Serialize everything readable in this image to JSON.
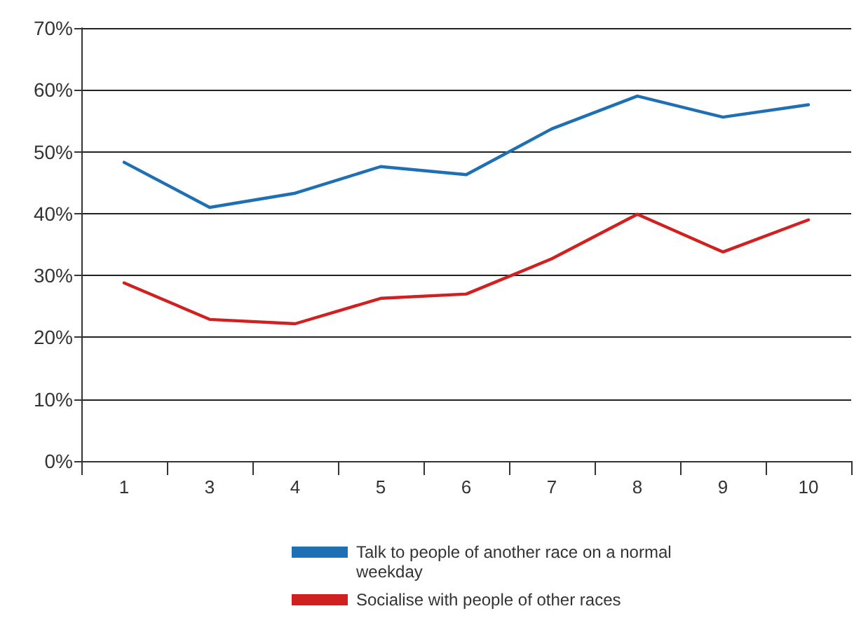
{
  "chart_data": {
    "type": "line",
    "categories": [
      "1",
      "3",
      "4",
      "5",
      "6",
      "7",
      "8",
      "9",
      "10"
    ],
    "series": [
      {
        "name": "Talk to people of another race on a normal weekday",
        "color": "#1f6fb5",
        "values": [
          48.3,
          41.0,
          43.3,
          47.6,
          46.3,
          53.7,
          59.0,
          55.6,
          57.6
        ]
      },
      {
        "name": "Socialise with people of other races",
        "color": "#d0201f",
        "values": [
          28.8,
          22.9,
          22.2,
          26.3,
          27.0,
          32.7,
          39.9,
          33.8,
          39.0
        ]
      }
    ],
    "ylim": [
      0,
      70
    ],
    "yticks": [
      {
        "value": 0,
        "label": "0%"
      },
      {
        "value": 10,
        "label": "10%"
      },
      {
        "value": 20,
        "label": "20%"
      },
      {
        "value": 30,
        "label": "30%"
      },
      {
        "value": 40,
        "label": "40%"
      },
      {
        "value": 50,
        "label": "50%"
      },
      {
        "value": 60,
        "label": "60%"
      },
      {
        "value": 70,
        "label": "70%"
      }
    ],
    "grid": "y",
    "legend": "bottom",
    "marker": "none",
    "line_style": "solid"
  }
}
